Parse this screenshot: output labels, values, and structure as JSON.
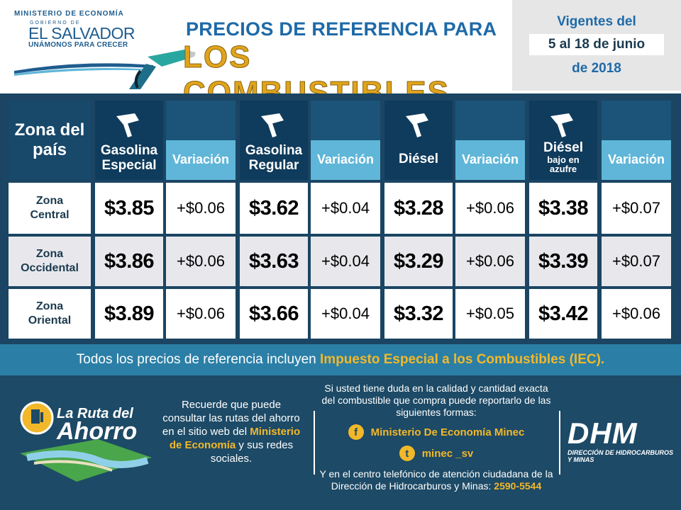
{
  "header": {
    "ministry_line": "MINISTERIO DE ECONOMÍA",
    "gobierno_line": "GOBIERNO DE",
    "country": "EL SALVADOR",
    "slogan": "UNÁMONOS PARA CRECER",
    "title_line1": "PRECIOS DE REFERENCIA PARA",
    "title_line2": "LOS COMBUSTIBLES",
    "validity_line1": "Vigentes del",
    "validity_dates": "5 al 18 de junio",
    "validity_year": "de 2018"
  },
  "table": {
    "zone_header": "Zona del país",
    "variation_label": "Variación",
    "fuels": [
      {
        "name": "Gasolina Especial",
        "sub": ""
      },
      {
        "name": "Gasolina Regular",
        "sub": ""
      },
      {
        "name": "Diésel",
        "sub": ""
      },
      {
        "name": "Diésel",
        "sub": "bajo en azufre"
      }
    ],
    "rows": [
      {
        "zone": "Zona Central",
        "prices": [
          "$3.85",
          "$3.62",
          "$3.28",
          "$3.38"
        ],
        "variations": [
          "+$0.06",
          "+$0.04",
          "+$0.06",
          "+$0.07"
        ]
      },
      {
        "zone": "Zona Occidental",
        "prices": [
          "$3.86",
          "$3.63",
          "$3.29",
          "$3.39"
        ],
        "variations": [
          "+$0.06",
          "+$0.04",
          "+$0.06",
          "+$0.07"
        ]
      },
      {
        "zone": "Zona Oriental",
        "prices": [
          "$3.89",
          "$3.66",
          "$3.32",
          "$3.42"
        ],
        "variations": [
          "+$0.06",
          "+$0.04",
          "+$0.05",
          "+$0.06"
        ]
      }
    ]
  },
  "iec_note": {
    "prefix": "Todos los precios de referencia incluyen ",
    "highlight": "Impuesto Especial a los Combustibles (IEC)."
  },
  "footer": {
    "ruta_line1": "La Ruta del",
    "ruta_line2": "Ahorro",
    "recuerde_text": "Recuerde que puede consultar las rutas del ahorro en el sitio web del",
    "recuerde_highlight": "Ministerio de Economía",
    "recuerde_tail": "y sus redes sociales.",
    "contact_intro": "Si usted tiene duda en la calidad y cantidad exacta del combustible que compra puede reportarlo de las siguientes formas:",
    "facebook_label": "Ministerio De Economía Minec",
    "twitter_label": "minec _sv",
    "contact_tail": "Y en el centro telefónico de atención ciudadana de la Dirección de Hidrocarburos y Minas:",
    "phone": "2590-5544",
    "dhm_logo": "DHM",
    "dhm_sub": "DIRECCIÓN DE HIDROCARBUROS Y MINAS"
  },
  "colors": {
    "header_blue": "#1e6aa8",
    "title_gold": "#e0a41c",
    "table_dark": "#1b4563",
    "variation_strip": "#5fb6d8",
    "iec_band": "#2b7fa6",
    "highlight_yellow": "#f2b82a",
    "footer_bg": "#1d4a66"
  },
  "icons": [
    "fuel-nozzle-icon",
    "facebook-icon",
    "twitter-icon",
    "fuel-pump-icon"
  ]
}
